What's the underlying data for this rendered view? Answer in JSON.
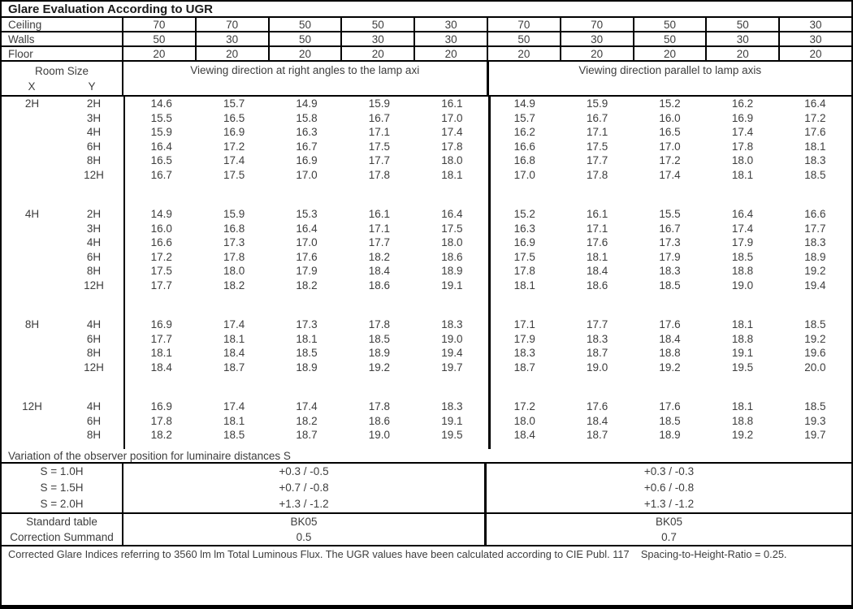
{
  "title": "Glare Evaluation According to UGR",
  "surface_rows": [
    {
      "label": "Ceiling",
      "values": [
        "70",
        "70",
        "50",
        "50",
        "30",
        "70",
        "70",
        "50",
        "50",
        "30"
      ]
    },
    {
      "label": "Walls",
      "values": [
        "50",
        "30",
        "50",
        "30",
        "30",
        "50",
        "30",
        "50",
        "30",
        "30"
      ]
    },
    {
      "label": "Floor",
      "values": [
        "20",
        "20",
        "20",
        "20",
        "20",
        "20",
        "20",
        "20",
        "20",
        "20"
      ]
    }
  ],
  "header": {
    "room_size": "Room Size",
    "x_label": "X",
    "y_label": "Y",
    "left_group": "Viewing direction at right angles to the lamp axi",
    "right_group": "Viewing direction parallel to lamp axis"
  },
  "blocks": [
    {
      "x": "2H",
      "rows": [
        {
          "y": "2H",
          "values": [
            "14.6",
            "15.7",
            "14.9",
            "15.9",
            "16.1",
            "14.9",
            "15.9",
            "15.2",
            "16.2",
            "16.4"
          ]
        },
        {
          "y": "3H",
          "values": [
            "15.5",
            "16.5",
            "15.8",
            "16.7",
            "17.0",
            "15.7",
            "16.7",
            "16.0",
            "16.9",
            "17.2"
          ]
        },
        {
          "y": "4H",
          "values": [
            "15.9",
            "16.9",
            "16.3",
            "17.1",
            "17.4",
            "16.2",
            "17.1",
            "16.5",
            "17.4",
            "17.6"
          ]
        },
        {
          "y": "6H",
          "values": [
            "16.4",
            "17.2",
            "16.7",
            "17.5",
            "17.8",
            "16.6",
            "17.5",
            "17.0",
            "17.8",
            "18.1"
          ]
        },
        {
          "y": "8H",
          "values": [
            "16.5",
            "17.4",
            "16.9",
            "17.7",
            "18.0",
            "16.8",
            "17.7",
            "17.2",
            "18.0",
            "18.3"
          ]
        },
        {
          "y": "12H",
          "values": [
            "16.7",
            "17.5",
            "17.0",
            "17.8",
            "18.1",
            "17.0",
            "17.8",
            "17.4",
            "18.1",
            "18.5"
          ]
        }
      ]
    },
    {
      "x": "4H",
      "rows": [
        {
          "y": "2H",
          "values": [
            "14.9",
            "15.9",
            "15.3",
            "16.1",
            "16.4",
            "15.2",
            "16.1",
            "15.5",
            "16.4",
            "16.6"
          ]
        },
        {
          "y": "3H",
          "values": [
            "16.0",
            "16.8",
            "16.4",
            "17.1",
            "17.5",
            "16.3",
            "17.1",
            "16.7",
            "17.4",
            "17.7"
          ]
        },
        {
          "y": "4H",
          "values": [
            "16.6",
            "17.3",
            "17.0",
            "17.7",
            "18.0",
            "16.9",
            "17.6",
            "17.3",
            "17.9",
            "18.3"
          ]
        },
        {
          "y": "6H",
          "values": [
            "17.2",
            "17.8",
            "17.6",
            "18.2",
            "18.6",
            "17.5",
            "18.1",
            "17.9",
            "18.5",
            "18.9"
          ]
        },
        {
          "y": "8H",
          "values": [
            "17.5",
            "18.0",
            "17.9",
            "18.4",
            "18.9",
            "17.8",
            "18.4",
            "18.3",
            "18.8",
            "19.2"
          ]
        },
        {
          "y": "12H",
          "values": [
            "17.7",
            "18.2",
            "18.2",
            "18.6",
            "19.1",
            "18.1",
            "18.6",
            "18.5",
            "19.0",
            "19.4"
          ]
        }
      ]
    },
    {
      "x": "8H",
      "rows": [
        {
          "y": "4H",
          "values": [
            "16.9",
            "17.4",
            "17.3",
            "17.8",
            "18.3",
            "17.1",
            "17.7",
            "17.6",
            "18.1",
            "18.5"
          ]
        },
        {
          "y": "6H",
          "values": [
            "17.7",
            "18.1",
            "18.1",
            "18.5",
            "19.0",
            "17.9",
            "18.3",
            "18.4",
            "18.8",
            "19.2"
          ]
        },
        {
          "y": "8H",
          "values": [
            "18.1",
            "18.4",
            "18.5",
            "18.9",
            "19.4",
            "18.3",
            "18.7",
            "18.8",
            "19.1",
            "19.6"
          ]
        },
        {
          "y": "12H",
          "values": [
            "18.4",
            "18.7",
            "18.9",
            "19.2",
            "19.7",
            "18.7",
            "19.0",
            "19.2",
            "19.5",
            "20.0"
          ]
        }
      ]
    },
    {
      "x": "12H",
      "rows": [
        {
          "y": "4H",
          "values": [
            "16.9",
            "17.4",
            "17.4",
            "17.8",
            "18.3",
            "17.2",
            "17.6",
            "17.6",
            "18.1",
            "18.5"
          ]
        },
        {
          "y": "6H",
          "values": [
            "17.8",
            "18.1",
            "18.2",
            "18.6",
            "19.1",
            "18.0",
            "18.4",
            "18.5",
            "18.8",
            "19.3"
          ]
        },
        {
          "y": "8H",
          "values": [
            "18.2",
            "18.5",
            "18.7",
            "19.0",
            "19.5",
            "18.4",
            "18.7",
            "18.9",
            "19.2",
            "19.7"
          ]
        }
      ]
    }
  ],
  "variation": {
    "title": "Variation of the observer position for luminaire distances S",
    "rows": [
      {
        "label": "S = 1.0H",
        "left": "+0.3 / -0.5",
        "right": "+0.3 / -0.3"
      },
      {
        "label": "S = 1.5H",
        "left": "+0.7 / -0.8",
        "right": "+0.6 / -0.8"
      },
      {
        "label": "S = 2.0H",
        "left": "+1.3 / -1.2",
        "right": "+1.3 / -1.2"
      }
    ]
  },
  "summary": {
    "rows": [
      {
        "label": "Standard table",
        "left": "BK05",
        "right": "BK05"
      },
      {
        "label": "Correction Summand",
        "left": "0.5",
        "right": "0.7"
      }
    ]
  },
  "footer": "Corrected Glare Indices referring to 3560 lm lm Total Luminous Flux. The UGR values have been calculated according to CIE Publ. 117    Spacing-to-Height-Ratio = 0.25.",
  "colors": {
    "border": "#000000",
    "text": "#3d3d3d",
    "background": "#ffffff"
  }
}
